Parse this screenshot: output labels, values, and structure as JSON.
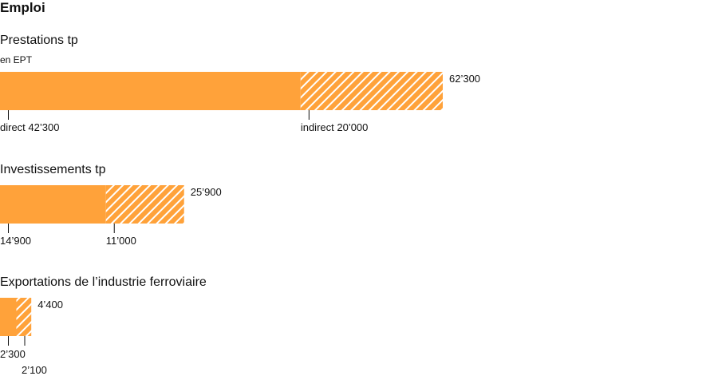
{
  "title": "Emploi",
  "colors": {
    "direct": "#FFA23A",
    "hatch_line": "#FFFFFF",
    "tick": "#111111",
    "text": "#111111"
  },
  "unit": "en EPT",
  "chart_data": [
    {
      "type": "bar",
      "stacked": true,
      "orientation": "horizontal",
      "title": "Prestations tp",
      "unit": "en EPT",
      "series": [
        {
          "name": "direct",
          "values": [
            42300
          ],
          "fill": "solid"
        },
        {
          "name": "indirect",
          "values": [
            20000
          ],
          "fill": "hatched"
        }
      ],
      "total": 62300,
      "labels": {
        "total": "62’300",
        "direct": "direct 42’300",
        "indirect": "indirect 20’000"
      }
    },
    {
      "type": "bar",
      "stacked": true,
      "orientation": "horizontal",
      "title": "Investissements tp",
      "series": [
        {
          "name": "direct",
          "values": [
            14900
          ],
          "fill": "solid"
        },
        {
          "name": "indirect",
          "values": [
            11000
          ],
          "fill": "hatched"
        }
      ],
      "total": 25900,
      "labels": {
        "total": "25’900",
        "direct": "14’900",
        "indirect": "11’000"
      }
    },
    {
      "type": "bar",
      "stacked": true,
      "orientation": "horizontal",
      "title": "Exportations de l’industrie ferroviaire",
      "series": [
        {
          "name": "direct",
          "values": [
            2300
          ],
          "fill": "solid"
        },
        {
          "name": "indirect",
          "values": [
            2100
          ],
          "fill": "hatched"
        }
      ],
      "total": 4400,
      "labels": {
        "total": "4’400",
        "direct": "2’300",
        "indirect": "2’100"
      }
    }
  ]
}
